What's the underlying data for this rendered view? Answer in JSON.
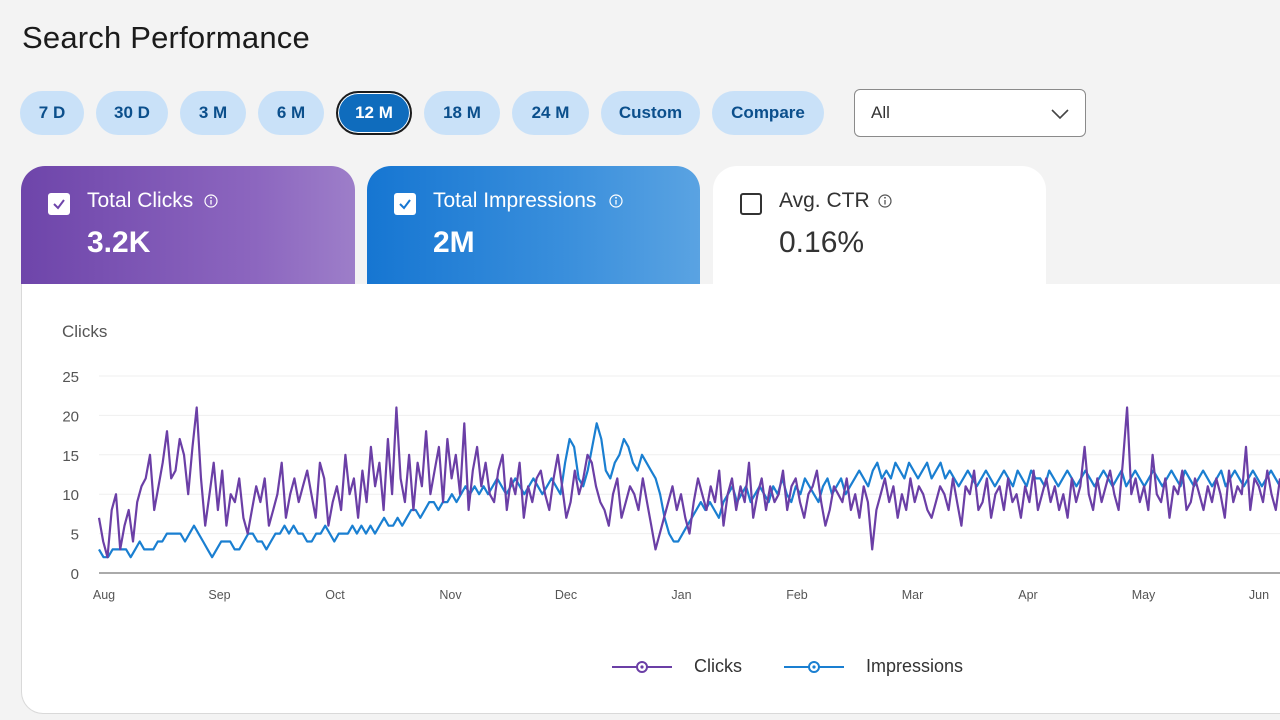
{
  "title": "Search Performance",
  "ranges": [
    {
      "label": "7 D",
      "width": 64,
      "active": false
    },
    {
      "label": "30 D",
      "width": 72,
      "active": false
    },
    {
      "label": "3 M",
      "width": 66,
      "active": false
    },
    {
      "label": "6 M",
      "width": 66,
      "active": false
    },
    {
      "label": "12 M",
      "width": 76,
      "active": true
    },
    {
      "label": "18 M",
      "width": 76,
      "active": false
    },
    {
      "label": "24 M",
      "width": 77,
      "active": false
    },
    {
      "label": "Custom",
      "width": 99,
      "active": false
    },
    {
      "label": "Compare",
      "width": 112,
      "active": false
    }
  ],
  "filter": {
    "selected": "All"
  },
  "metrics": {
    "clicks": {
      "label": "Total Clicks",
      "value": "3.2K",
      "checked": true
    },
    "impressions": {
      "label": "Total Impressions",
      "value": "2M",
      "checked": true
    },
    "ctr": {
      "label": "Avg. CTR",
      "value": "0.16%",
      "checked": false
    }
  },
  "legend": {
    "clicks": "Clicks",
    "impressions": "Impressions"
  },
  "colors": {
    "clicks": "#6b3fa6",
    "impressions": "#1a7fd1",
    "accent": "#0f6cbd"
  },
  "chart_data": {
    "type": "line",
    "ylabel": "Clicks",
    "ylim": [
      0,
      25
    ],
    "yticks": [
      0,
      5,
      10,
      15,
      20,
      25
    ],
    "x_tick_labels": [
      "Aug",
      "Sep",
      "Oct",
      "Nov",
      "Dec",
      "Jan",
      "Feb",
      "Mar",
      "Apr",
      "May",
      "Jun"
    ],
    "series": [
      {
        "name": "Clicks",
        "values": [
          7,
          4,
          2,
          8,
          10,
          3,
          6,
          8,
          4,
          9,
          11,
          12,
          15,
          8,
          11,
          14,
          18,
          12,
          13,
          17,
          15,
          10,
          16,
          21,
          12,
          6,
          10,
          14,
          8,
          13,
          6,
          10,
          9,
          12,
          7,
          5,
          8,
          11,
          9,
          12,
          6,
          8,
          10,
          14,
          7,
          10,
          12,
          9,
          11,
          13,
          10,
          7,
          14,
          12,
          6,
          9,
          11,
          8,
          15,
          10,
          12,
          7,
          13,
          9,
          16,
          11,
          14,
          8,
          17,
          10,
          21,
          12,
          9,
          15,
          8,
          14,
          11,
          18,
          10,
          13,
          16,
          9,
          17,
          12,
          15,
          10,
          19,
          8,
          13,
          16,
          11,
          14,
          10,
          9,
          13,
          15,
          8,
          12,
          10,
          14,
          7,
          11,
          9,
          12,
          13,
          10,
          8,
          12,
          15,
          11,
          7,
          9,
          13,
          10,
          12,
          15,
          14,
          11,
          9,
          8,
          6,
          10,
          12,
          7,
          9,
          11,
          10,
          8,
          12,
          9,
          6,
          3,
          5,
          7,
          9,
          11,
          8,
          10,
          7,
          5,
          9,
          12,
          10,
          8,
          11,
          9,
          13,
          6,
          10,
          12,
          8,
          11,
          9,
          14,
          7,
          10,
          12,
          8,
          11,
          9,
          10,
          13,
          8,
          11,
          12,
          9,
          7,
          10,
          11,
          13,
          9,
          6,
          8,
          11,
          10,
          9,
          12,
          8,
          10,
          7,
          11,
          9,
          3,
          8,
          10,
          12,
          9,
          11,
          7,
          10,
          8,
          12,
          9,
          11,
          10,
          8,
          7,
          9,
          11,
          10,
          8,
          12,
          9,
          6,
          11,
          10,
          13,
          8,
          9,
          12,
          7,
          10,
          11,
          8,
          12,
          9,
          10,
          7,
          11,
          9,
          13,
          8,
          10,
          12,
          9,
          11,
          8,
          10,
          7,
          12,
          9,
          11,
          16,
          10,
          8,
          12,
          9,
          11,
          13,
          10,
          8,
          14,
          21,
          10,
          12,
          9,
          11,
          8,
          15,
          10,
          9,
          12,
          7,
          11,
          10,
          13,
          8,
          9,
          12,
          10,
          8,
          11,
          9,
          12,
          10,
          7,
          13,
          9,
          11,
          10,
          16,
          8,
          12,
          11,
          9,
          13,
          10,
          8,
          12
        ]
      },
      {
        "name": "Impressions",
        "values": [
          3,
          2,
          2,
          3,
          3,
          3,
          3,
          2,
          3,
          4,
          3,
          3,
          3,
          4,
          4,
          5,
          5,
          5,
          5,
          4,
          5,
          6,
          5,
          4,
          3,
          2,
          3,
          4,
          4,
          4,
          3,
          3,
          4,
          5,
          5,
          4,
          4,
          3,
          4,
          5,
          5,
          6,
          5,
          6,
          5,
          5,
          4,
          4,
          5,
          5,
          6,
          5,
          4,
          5,
          5,
          5,
          6,
          5,
          6,
          5,
          6,
          5,
          6,
          7,
          6,
          6,
          7,
          6,
          7,
          8,
          8,
          7,
          8,
          9,
          9,
          8,
          9,
          9,
          10,
          9,
          10,
          11,
          10,
          11,
          10,
          11,
          10,
          11,
          12,
          11,
          10,
          11,
          12,
          11,
          10,
          11,
          12,
          11,
          10,
          11,
          12,
          11,
          10,
          14,
          17,
          16,
          12,
          11,
          13,
          16,
          19,
          17,
          13,
          12,
          14,
          15,
          17,
          16,
          14,
          13,
          15,
          14,
          13,
          12,
          10,
          7,
          5,
          4,
          4,
          5,
          6,
          7,
          8,
          9,
          8,
          9,
          8,
          7,
          9,
          10,
          11,
          9,
          10,
          11,
          9,
          10,
          11,
          10,
          9,
          11,
          10,
          12,
          10,
          9,
          11,
          10,
          12,
          11,
          10,
          9,
          11,
          12,
          10,
          11,
          12,
          10,
          11,
          12,
          13,
          12,
          11,
          13,
          14,
          12,
          13,
          12,
          14,
          13,
          12,
          14,
          13,
          12,
          13,
          14,
          12,
          13,
          14,
          12,
          13,
          12,
          11,
          12,
          13,
          12,
          11,
          12,
          13,
          12,
          11,
          12,
          13,
          12,
          11,
          13,
          12,
          11,
          13,
          12,
          12,
          11,
          13,
          12,
          11,
          12,
          13,
          12,
          11,
          12,
          13,
          12,
          11,
          12,
          13,
          12,
          11,
          12,
          13,
          11,
          12,
          13,
          12,
          11,
          12,
          13,
          12,
          11,
          12,
          13,
          12,
          11,
          13,
          12,
          11,
          12,
          13,
          12,
          11,
          12,
          13,
          11,
          12,
          13,
          12,
          11,
          12,
          13,
          12,
          11,
          12,
          13,
          12,
          11
        ]
      }
    ]
  }
}
